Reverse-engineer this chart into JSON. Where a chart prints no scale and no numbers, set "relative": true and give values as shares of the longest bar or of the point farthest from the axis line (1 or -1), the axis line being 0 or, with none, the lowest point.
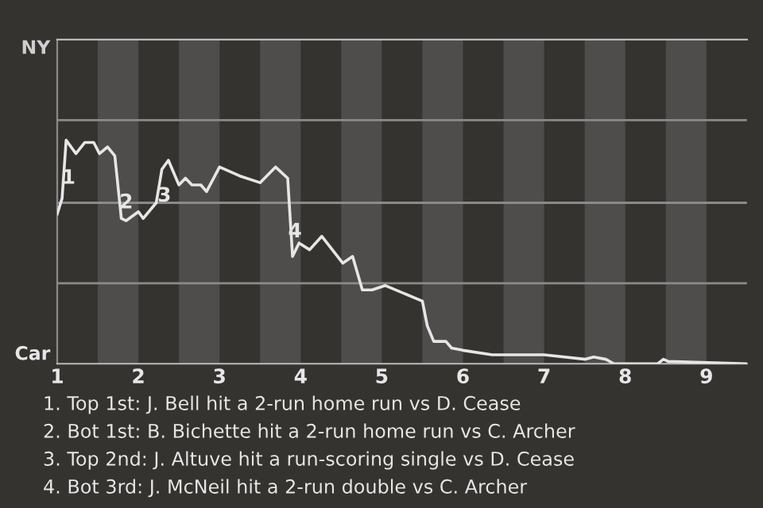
{
  "chart_data": {
    "type": "line",
    "relative": true,
    "x": [
      1.0,
      1.06,
      1.11,
      1.23,
      1.34,
      1.45,
      1.52,
      1.62,
      1.71,
      1.79,
      1.85,
      2.0,
      2.06,
      2.22,
      2.29,
      2.37,
      2.5,
      2.58,
      2.66,
      2.77,
      2.84,
      3.0,
      3.25,
      3.5,
      3.69,
      3.84,
      3.9,
      3.98,
      4.11,
      4.26,
      4.52,
      4.64,
      4.76,
      4.88,
      5.04,
      5.5,
      5.56,
      5.64,
      5.79,
      5.86,
      6.0,
      6.36,
      6.76,
      7.0,
      7.51,
      7.61,
      7.76,
      7.86,
      8.4,
      8.47,
      8.53,
      9.5
    ],
    "series": [
      {
        "color": "#e6e6e6",
        "values": [
          0.67,
          0.74,
          1,
          0.94,
          0.99,
          0.99,
          0.94,
          0.97,
          0.93,
          0.65,
          0.64,
          0.68,
          0.65,
          0.72,
          0.87,
          0.91,
          0.8,
          0.83,
          0.8,
          0.8,
          0.77,
          0.88,
          0.84,
          0.81,
          0.88,
          0.83,
          0.48,
          0.54,
          0.51,
          0.57,
          0.45,
          0.48,
          0.33,
          0.33,
          0.35,
          0.28,
          0.17,
          0.1,
          0.1,
          0.07,
          0.06,
          0.04,
          0.04,
          0.04,
          0.02,
          0.03,
          0.02,
          0,
          0,
          0.02,
          0.01,
          0
        ]
      }
    ],
    "xlim": [
      1,
      9.5
    ],
    "xticks": [
      1,
      2,
      3,
      4,
      5,
      6,
      7,
      8,
      9
    ],
    "ref_lines": [
      {
        "axis": "y",
        "value": 0.36,
        "color": "#8a8a8a"
      },
      {
        "axis": "y",
        "value": 0.72,
        "color": "#8a8a8a"
      },
      {
        "axis": "y",
        "value": 1.09,
        "color": "#8a8a8a"
      }
    ],
    "bands": [
      {
        "axis": "x",
        "from": 1.5,
        "to": 2,
        "color": "#4e4d4b"
      },
      {
        "axis": "x",
        "from": 2.5,
        "to": 3,
        "color": "#4e4d4b"
      },
      {
        "axis": "x",
        "from": 3.5,
        "to": 4,
        "color": "#4e4d4b"
      },
      {
        "axis": "x",
        "from": 4.5,
        "to": 5,
        "color": "#4e4d4b"
      },
      {
        "axis": "x",
        "from": 5.5,
        "to": 6,
        "color": "#4e4d4b"
      },
      {
        "axis": "x",
        "from": 6.5,
        "to": 7,
        "color": "#4e4d4b"
      },
      {
        "axis": "x",
        "from": 7.5,
        "to": 8,
        "color": "#4e4d4b"
      },
      {
        "axis": "x",
        "from": 8.5,
        "to": 9,
        "color": "#4e4d4b"
      }
    ],
    "annotations": [
      "NY",
      "Car",
      {
        "text": "1",
        "x": 1.14,
        "y": 0.83
      },
      {
        "text": "2",
        "x": 1.85,
        "y": 0.72
      },
      {
        "text": "3",
        "x": 2.32,
        "y": 0.75
      },
      {
        "text": "4",
        "x": 3.93,
        "y": 0.59
      },
      "1. Top 1st: J. Bell hit a 2-run home run vs D. Cease",
      "2. Bot 1st: B. Bichette hit a 2-run home run vs C. Archer",
      "3. Top 2nd: J. Altuve hit a run-scoring single vs D. Cease",
      "4. Bot 3rd: J. McNeil hit a 2-run double vs C. Archer"
    ]
  }
}
